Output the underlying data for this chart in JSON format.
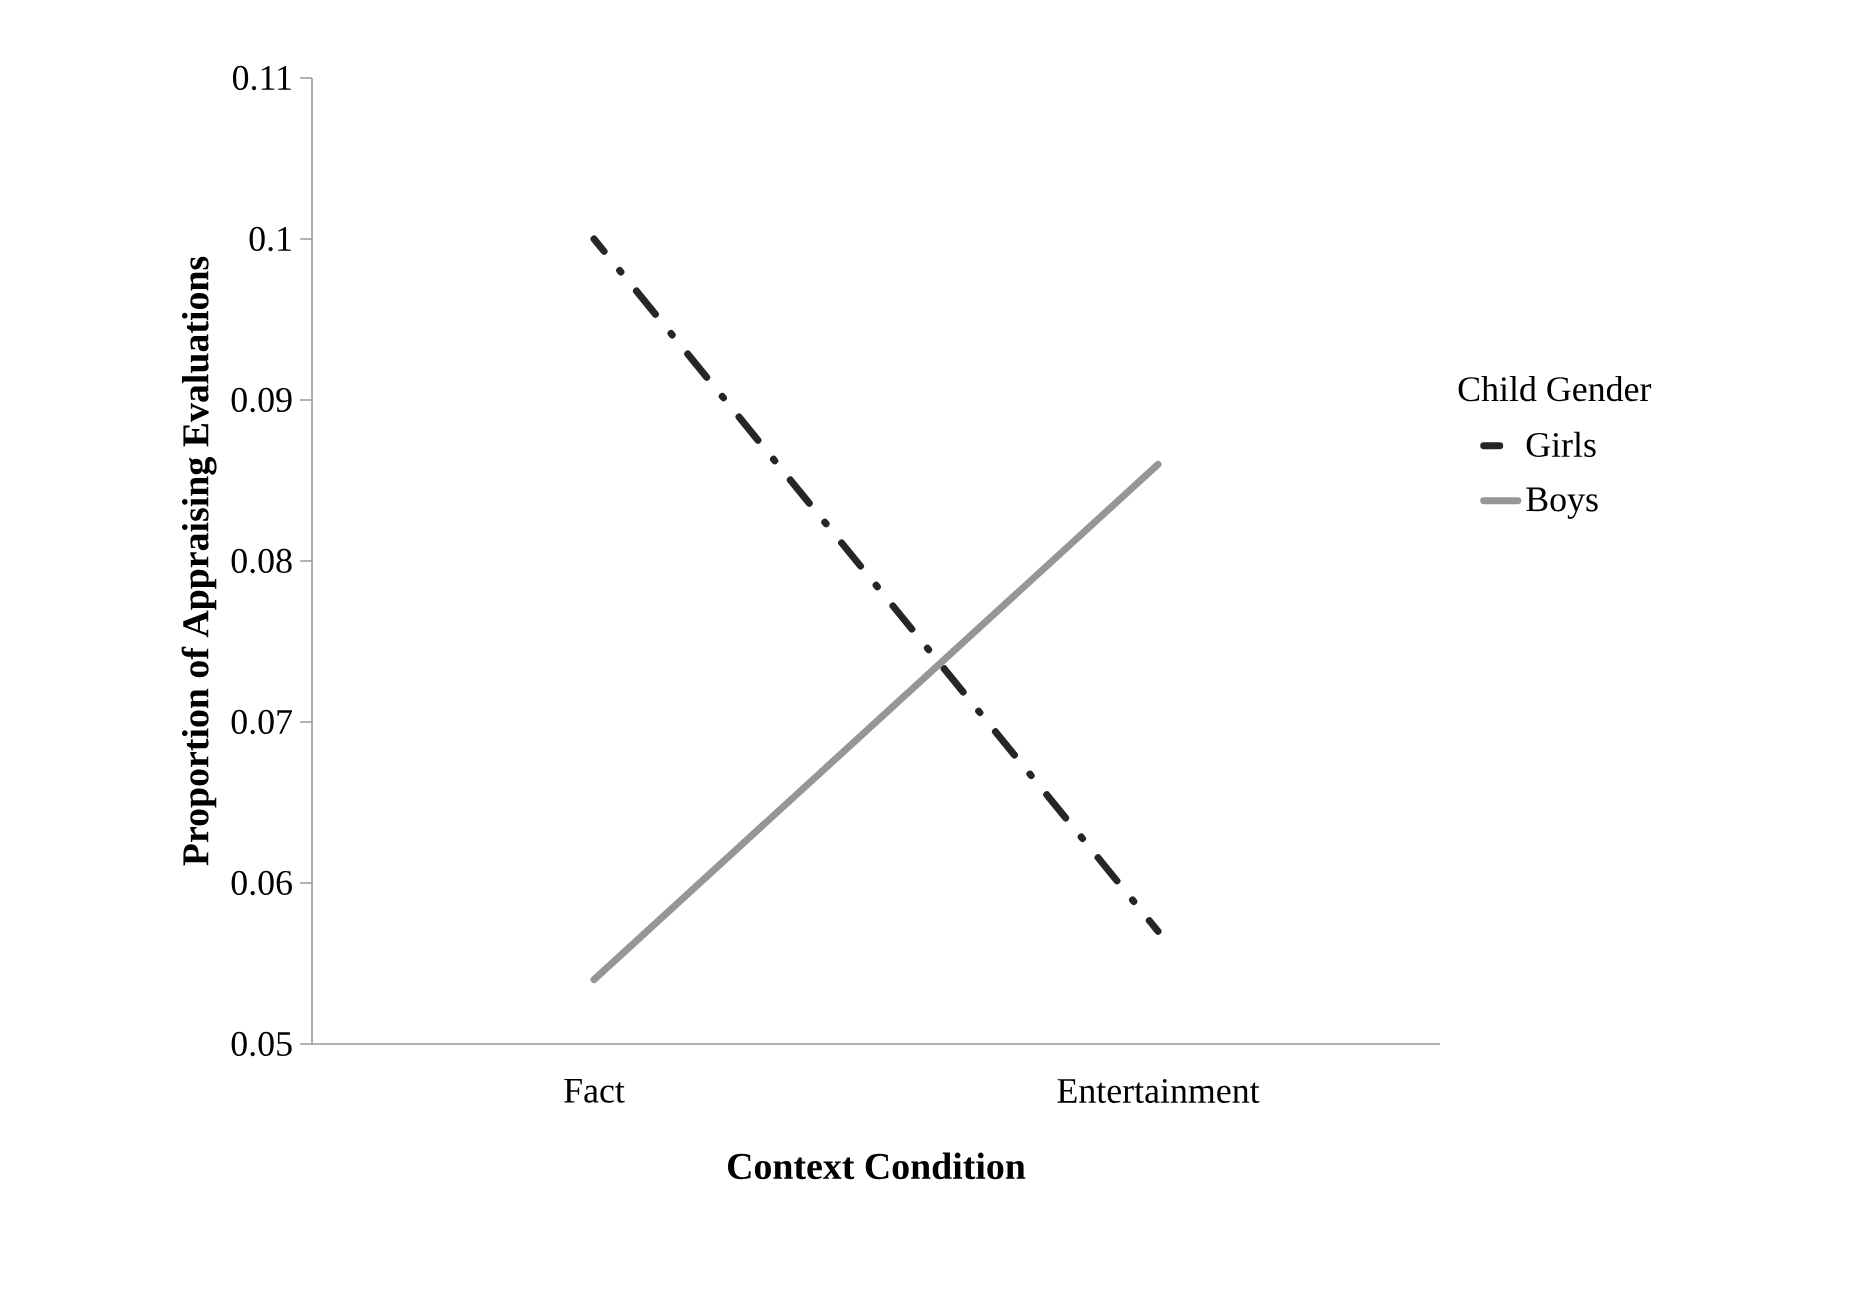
{
  "chart_data": {
    "type": "line",
    "xlabel": "Context Condition",
    "ylabel": "Proportion of Appraising Evaluations",
    "legend_title": "Child Gender",
    "categories": [
      "Fact",
      "Entertainment"
    ],
    "series": [
      {
        "name": "Girls",
        "color": "#262626",
        "line_style": "dashdot",
        "values": [
          0.1,
          0.057
        ]
      },
      {
        "name": "Boys",
        "color": "#969696",
        "line_style": "solid",
        "values": [
          0.054,
          0.086
        ]
      }
    ],
    "ylim": [
      0.05,
      0.11
    ],
    "yticks": [
      0.05,
      0.06,
      0.07,
      0.08,
      0.09,
      0.1,
      0.11
    ],
    "grid": false,
    "legend": "right",
    "marker": "none"
  }
}
